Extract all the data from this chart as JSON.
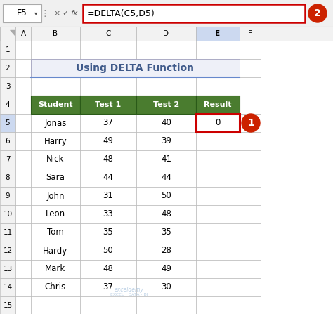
{
  "title": "Using DELTA Function",
  "formula_bar_cell": "E5",
  "formula_bar_formula": "=DELTA(C5,D5)",
  "table_headers": [
    "Student",
    "Test 1",
    "Test 2",
    "Result"
  ],
  "students": [
    "Jonas",
    "Harry",
    "Nick",
    "Sara",
    "John",
    "Leon",
    "Tom",
    "Hardy",
    "Mark",
    "Chris"
  ],
  "test1": [
    37,
    49,
    48,
    44,
    31,
    33,
    35,
    50,
    48,
    37
  ],
  "test2": [
    40,
    39,
    41,
    44,
    50,
    48,
    35,
    28,
    49,
    30
  ],
  "result_value": "0",
  "header_bg": "#4a7c2f",
  "header_text": "#ffffff",
  "title_text_color": "#3f5a8a",
  "title_bg": "#eef0f8",
  "cell_bg": "#ffffff",
  "row_num_bg": "#f2f2f2",
  "col_header_bg": "#f2f2f2",
  "col_header_highlight": "#ccd9f0",
  "row_num_highlight": "#ccd9f0",
  "result_border_color": "#cc0000",
  "formula_border_color": "#cc0000",
  "badge1_color": "#cc2200",
  "badge2_color": "#cc2200",
  "watermark_line1": "exceldemy",
  "watermark_line2": "EXCEL · DATA · BI",
  "bg_color": "#d8d8d8",
  "formula_bar_bg": "#f0f0f0",
  "sheet_bg": "#ffffff",
  "grid_color": "#b0b0b0",
  "outer_border": "#888888"
}
